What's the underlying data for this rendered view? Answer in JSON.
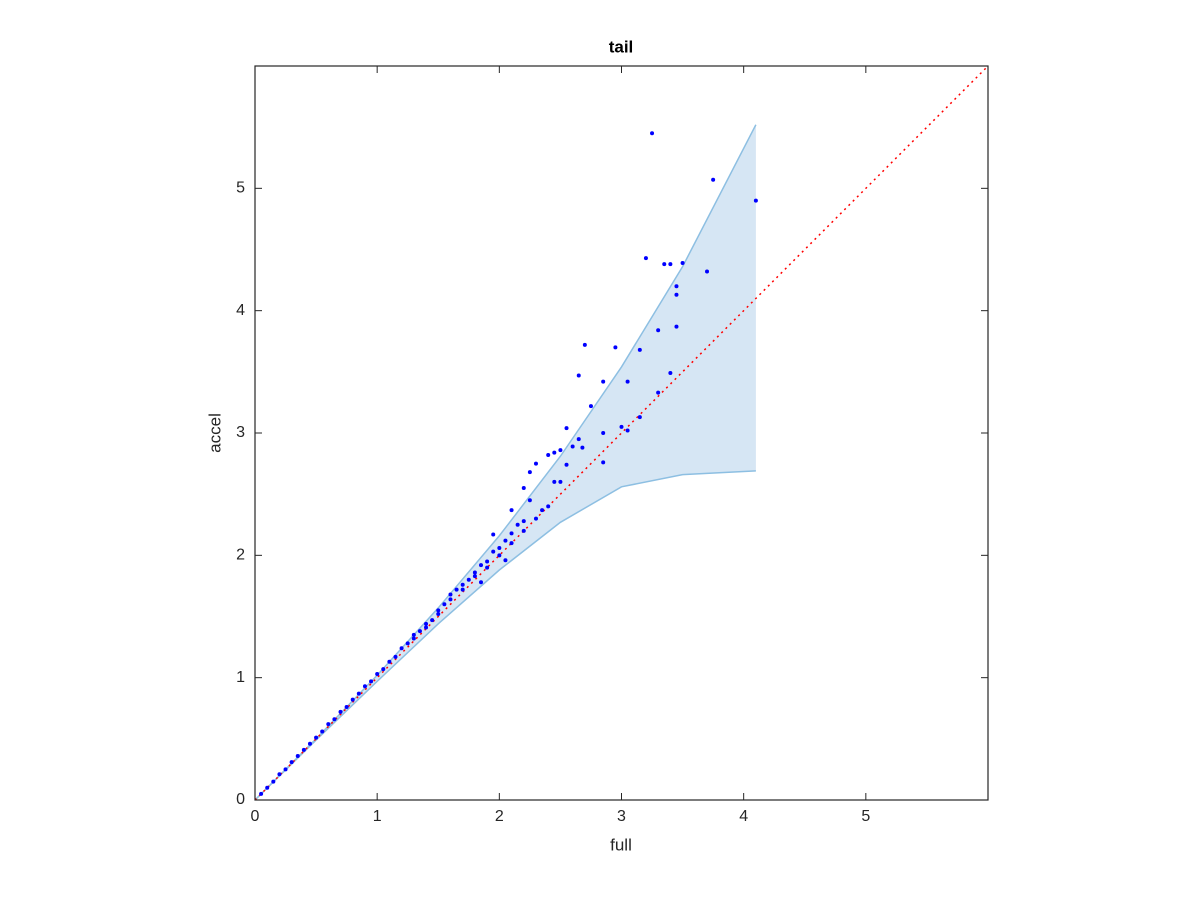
{
  "chart_data": {
    "type": "scatter",
    "title": "tail",
    "x_label": "full",
    "y_label": "accel",
    "xlim": [
      0,
      6
    ],
    "ylim": [
      0,
      6
    ],
    "xticks": [
      0,
      1,
      2,
      3,
      4,
      5
    ],
    "yticks": [
      0,
      1,
      2,
      3,
      4,
      5
    ],
    "band": {
      "color": "#d6e6f4",
      "edge_color": "#8dbfe2",
      "x": [
        0,
        0.5,
        1,
        1.5,
        2,
        2.5,
        3,
        3.5,
        4.1
      ],
      "upper": [
        0,
        0.5,
        1.02,
        1.57,
        2.16,
        2.81,
        3.54,
        4.36,
        5.52
      ],
      "lower": [
        0,
        0.49,
        0.97,
        1.44,
        1.88,
        2.27,
        2.56,
        2.66,
        2.69
      ]
    },
    "reference_line": {
      "color": "#ff0000",
      "x": [
        0,
        6
      ],
      "y": [
        0,
        6
      ]
    },
    "points": {
      "color": "#0000ff",
      "x": [
        0.05,
        0.1,
        0.15,
        0.2,
        0.25,
        0.3,
        0.35,
        0.4,
        0.45,
        0.5,
        0.55,
        0.6,
        0.65,
        0.7,
        0.75,
        0.8,
        0.85,
        0.9,
        0.95,
        1.0,
        1.05,
        1.1,
        1.15,
        1.2,
        1.25,
        1.3,
        1.35,
        1.4,
        1.45,
        1.5,
        1.55,
        1.6,
        1.65,
        1.7,
        1.75,
        1.8,
        1.85,
        1.9,
        1.95,
        2.0,
        2.05,
        2.1,
        2.15,
        2.2,
        1.3,
        1.4,
        1.5,
        1.6,
        1.7,
        1.8,
        1.9,
        1.95,
        2.0,
        2.1,
        2.2,
        2.05,
        1.85,
        2.25,
        2.3,
        2.1,
        2.2,
        2.35,
        2.4,
        2.5,
        2.3,
        2.45,
        2.4,
        2.55,
        2.5,
        2.6,
        2.68,
        2.85,
        2.55,
        2.85,
        3.0,
        3.05,
        2.75,
        3.15,
        3.3,
        2.65,
        3.4,
        2.85,
        3.05,
        2.7,
        2.95,
        3.15,
        3.3,
        3.45,
        3.45,
        3.45,
        3.7,
        3.2,
        3.35,
        3.4,
        3.5,
        3.25,
        3.75,
        4.1,
        2.45,
        2.25,
        2.65
      ],
      "y": [
        0.05,
        0.1,
        0.15,
        0.21,
        0.25,
        0.31,
        0.36,
        0.41,
        0.46,
        0.51,
        0.56,
        0.62,
        0.66,
        0.72,
        0.76,
        0.82,
        0.87,
        0.93,
        0.97,
        1.03,
        1.07,
        1.13,
        1.17,
        1.24,
        1.28,
        1.35,
        1.38,
        1.44,
        1.47,
        1.55,
        1.6,
        1.64,
        1.72,
        1.76,
        1.8,
        1.86,
        1.92,
        1.95,
        2.03,
        2.06,
        2.12,
        2.18,
        2.25,
        2.28,
        1.32,
        1.41,
        1.52,
        1.68,
        1.72,
        1.83,
        1.9,
        2.17,
        2.0,
        2.1,
        2.2,
        1.96,
        1.78,
        2.45,
        2.3,
        2.37,
        2.55,
        2.37,
        2.4,
        2.6,
        2.75,
        2.84,
        2.82,
        2.74,
        2.86,
        2.89,
        2.88,
        2.76,
        3.04,
        3.0,
        3.05,
        3.02,
        3.22,
        3.13,
        3.33,
        3.47,
        3.49,
        3.42,
        3.42,
        3.72,
        3.7,
        3.68,
        3.84,
        3.87,
        4.13,
        4.2,
        4.32,
        4.43,
        4.38,
        4.38,
        4.39,
        5.45,
        5.07,
        4.9,
        2.6,
        2.68,
        2.95
      ]
    }
  }
}
